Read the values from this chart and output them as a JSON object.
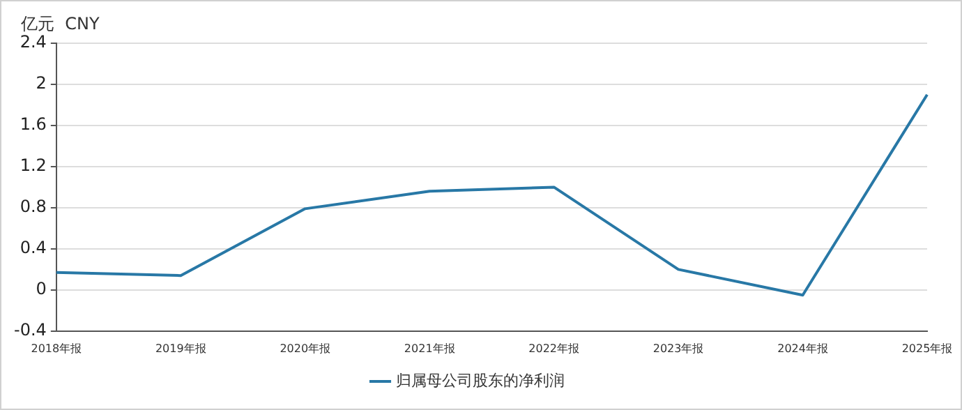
{
  "chart_data": {
    "type": "line",
    "ylabel": "亿元  CNY",
    "categories": [
      "2018年报",
      "2019年报",
      "2020年报",
      "2021年报",
      "2022年报",
      "2023年报",
      "2024年报",
      "2025年报"
    ],
    "series": [
      {
        "name": "归属母公司股东的净利润",
        "color": "#2878a6",
        "values": [
          0.17,
          0.14,
          0.79,
          0.96,
          1.0,
          0.2,
          -0.05,
          1.9
        ]
      }
    ],
    "ylim": [
      -0.4,
      2.4
    ],
    "yticks": [
      -0.4,
      0,
      0.4,
      0.8,
      1.2,
      1.6,
      2,
      2.4
    ],
    "grid": "y",
    "legend": "bottom",
    "marker": "none"
  }
}
